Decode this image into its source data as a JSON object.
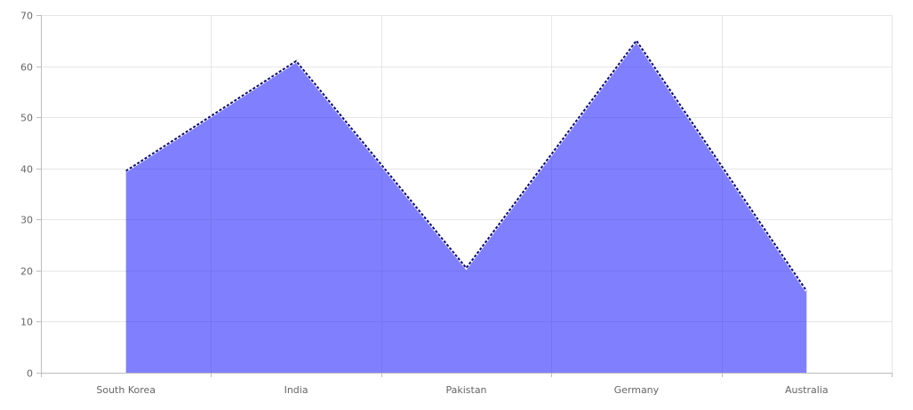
{
  "chart_data": {
    "type": "area",
    "categories": [
      "South Korea",
      "India",
      "Pakistan",
      "Germany",
      "Australia"
    ],
    "series": [
      {
        "values": [
          39.5,
          61,
          20.5,
          65,
          16
        ]
      }
    ],
    "ylim": [
      0,
      70
    ],
    "yticks": [
      0,
      10,
      20,
      30,
      40,
      50,
      60,
      70
    ],
    "grid": true,
    "colors": {
      "area_fill": "#8080ff",
      "line": "#0a0a7a",
      "grid": "#e6e6e6",
      "axis": "#bdbdbd",
      "text": "#666666"
    }
  }
}
